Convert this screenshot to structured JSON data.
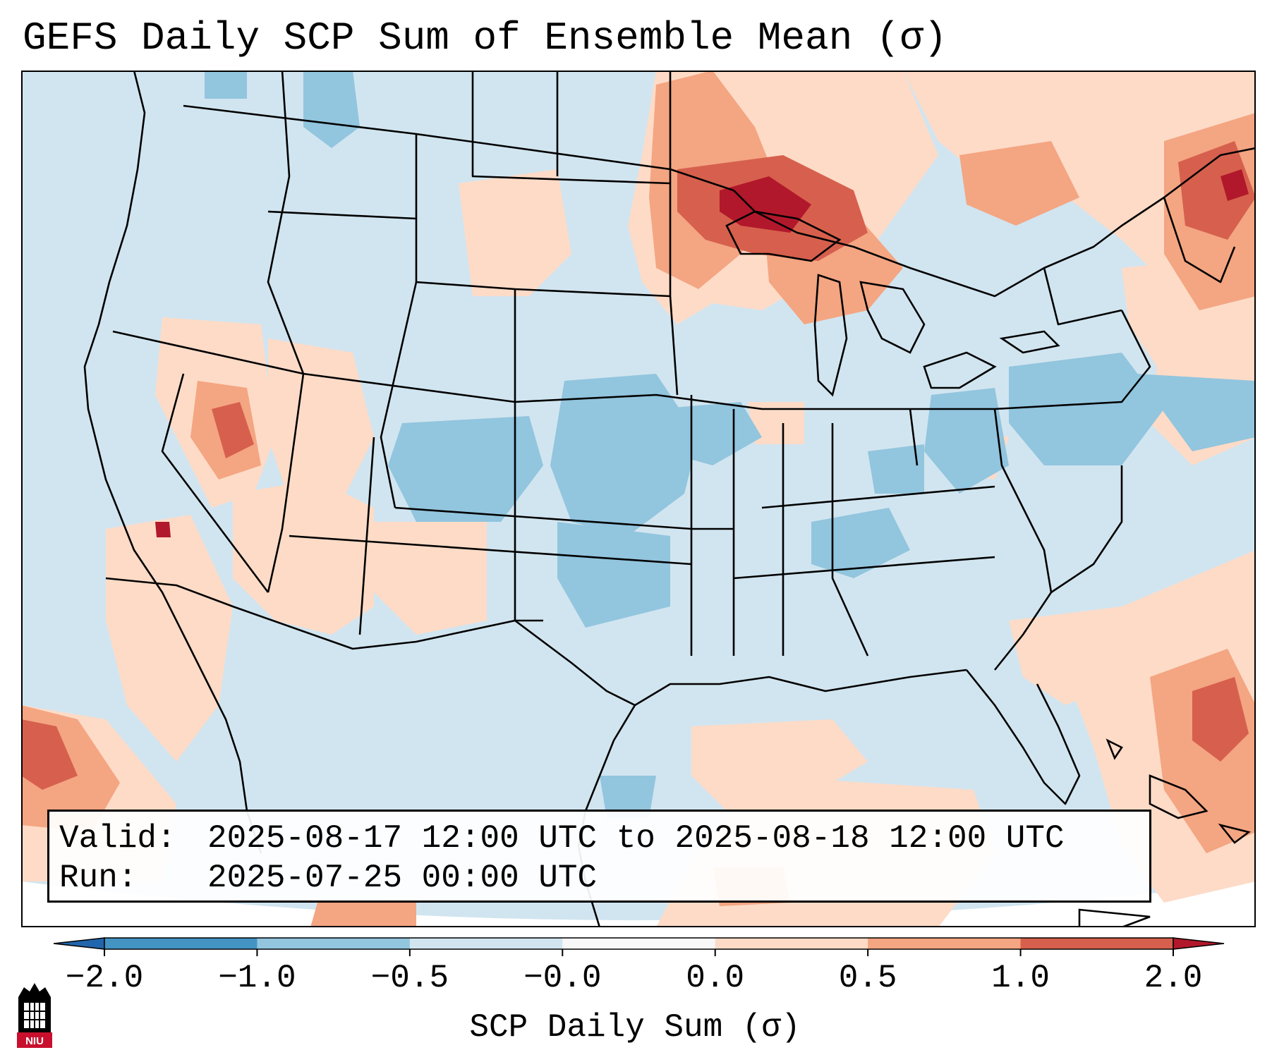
{
  "title": "GEFS Daily SCP Sum of Ensemble Mean (σ)",
  "info": {
    "valid_label": "Valid:",
    "valid_value": "2025-08-17 12:00 UTC to 2025-08-18 12:00 UTC",
    "run_label": "Run:",
    "run_value": "2025-07-25 00:00 UTC"
  },
  "colorbar": {
    "label": "SCP Daily Sum (σ)",
    "ticks": [
      "−2.0",
      "−1.0",
      "−0.5",
      "−0.0",
      "0.0",
      "0.5",
      "1.0",
      "2.0"
    ],
    "bins": [
      {
        "range": "< -2.0",
        "color": "#2166ac"
      },
      {
        "range": "-2.0 to -1.0",
        "color": "#4393c3"
      },
      {
        "range": "-1.0 to -0.5",
        "color": "#92c5de"
      },
      {
        "range": "-0.5 to -0.0",
        "color": "#d1e5f0"
      },
      {
        "range": "-0.0 to 0.0",
        "color": "#f7f7f7"
      },
      {
        "range": "0.0 to 0.5",
        "color": "#fddbc7"
      },
      {
        "range": "0.5 to 1.0",
        "color": "#f4a582"
      },
      {
        "range": "1.0 to 2.0",
        "color": "#d6604d"
      },
      {
        "range": "> 2.0",
        "color": "#b2182b"
      }
    ]
  },
  "logo": {
    "text": "NIU",
    "icon": "university-tower-icon"
  },
  "colors": {
    "frame": "#000000",
    "background": "#ffffff"
  }
}
